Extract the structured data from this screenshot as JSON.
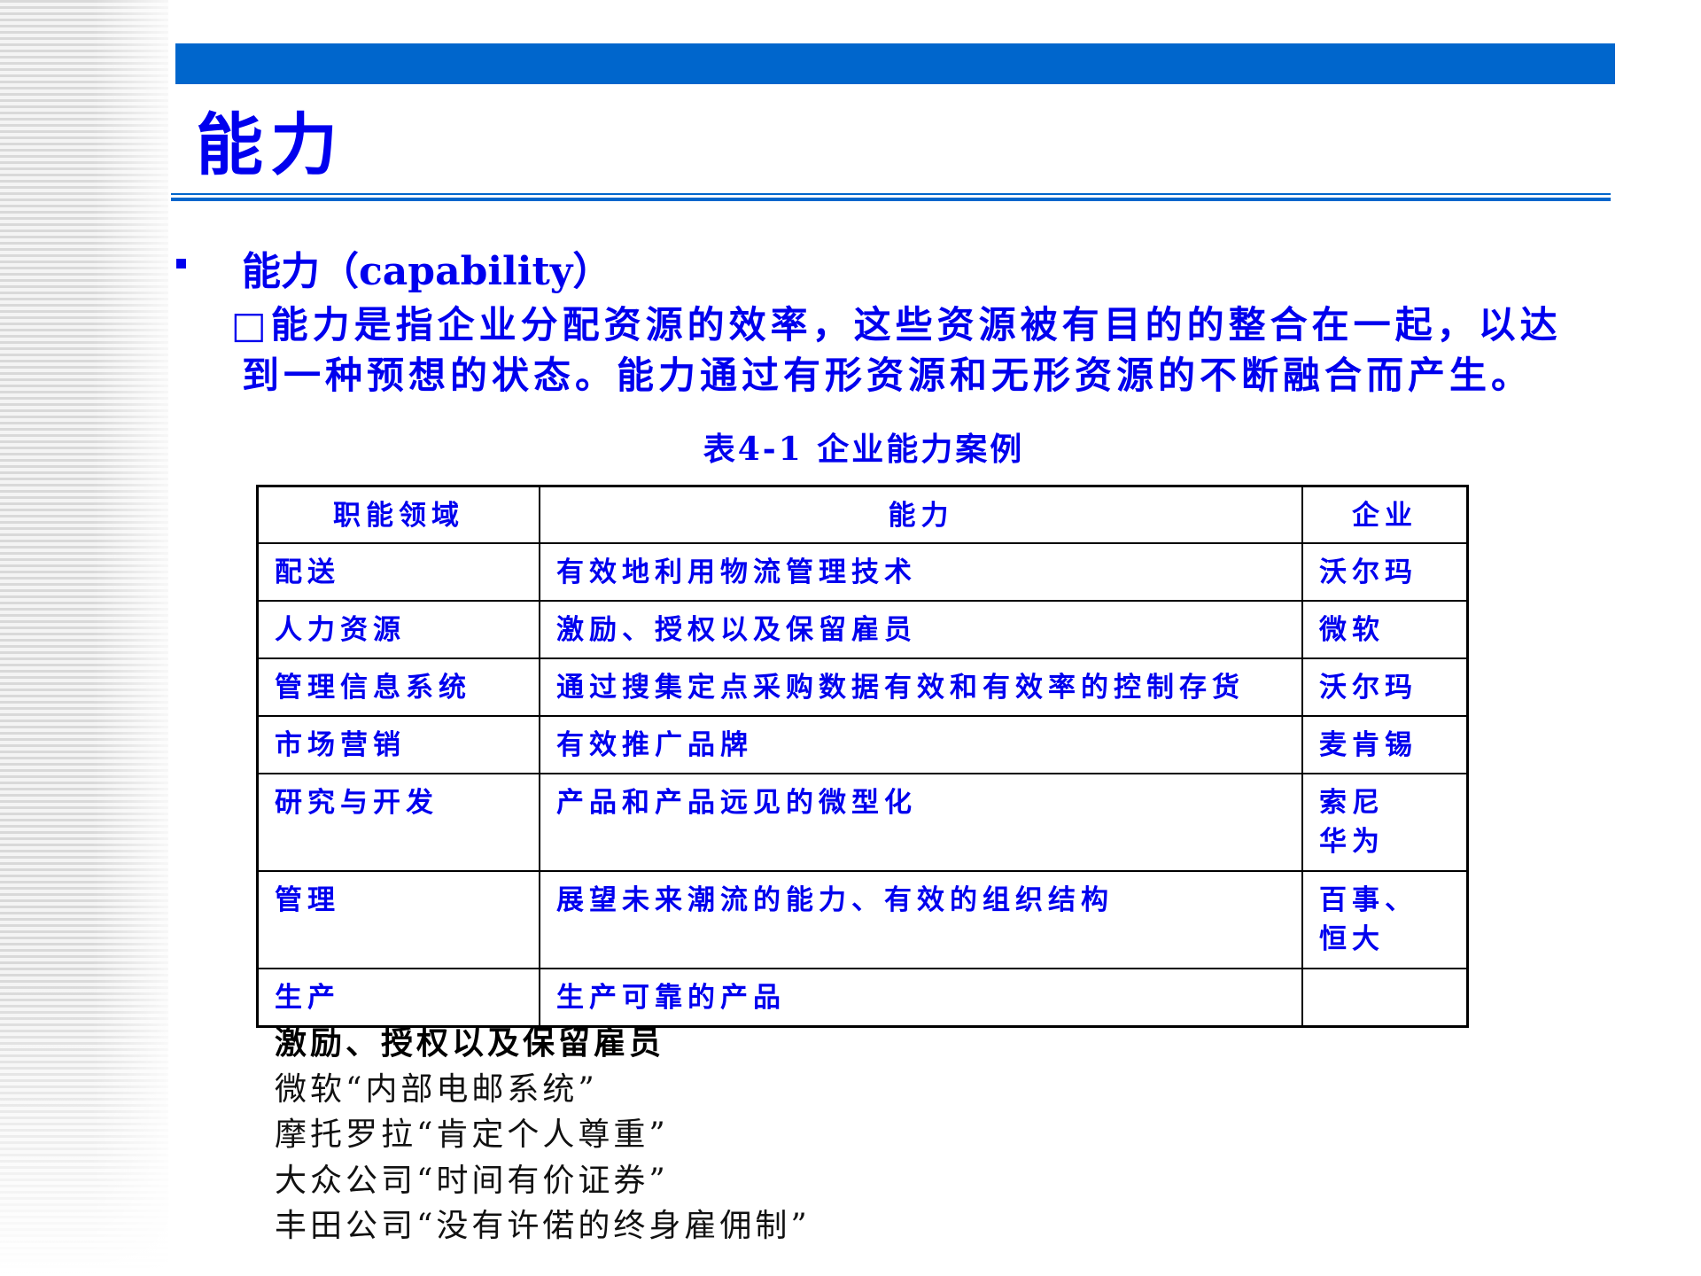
{
  "slide": {
    "title": "能力",
    "heading": "能力（capability）",
    "paragraph_line1": "□能力是指企业分配资源的效率，这些资源被有目的的整合在一起，以达",
    "paragraph_line2": "到一种预想的状态。能力通过有形资源和无形资源的不断融合而产生。",
    "caption": "表4-1 企业能力案例",
    "accent_color": "#0066cc",
    "text_color": "#0000ee"
  },
  "table": {
    "headers": [
      "职能领域",
      "能力",
      "企业"
    ],
    "rows": [
      [
        "配送",
        "有效地利用物流管理技术",
        "沃尔玛",
        ""
      ],
      [
        "人力资源",
        "激励、授权以及保留雇员",
        "微软",
        ""
      ],
      [
        "管理信息系统",
        "通过搜集定点采购数据有效和有效率的控制存货",
        "沃尔玛",
        ""
      ],
      [
        "市场营销",
        "有效推广品牌",
        "麦肯锡",
        ""
      ],
      [
        "研究与开发",
        "产品和产品远见的微型化",
        "索尼",
        "华为"
      ],
      [
        "管理",
        "展望未来潮流的能力、有效的组织结构",
        "百事、",
        "恒大"
      ],
      [
        "生产",
        "生产可靠的产品",
        "",
        ""
      ]
    ]
  },
  "notes": {
    "heading": "激励、授权以及保留雇员",
    "items": [
      "微软“内部电邮系统”",
      "摩托罗拉“肯定个人尊重”",
      "大众公司“时间有价证券”",
      "丰田公司“没有许偌的终身雇佣制”"
    ]
  }
}
